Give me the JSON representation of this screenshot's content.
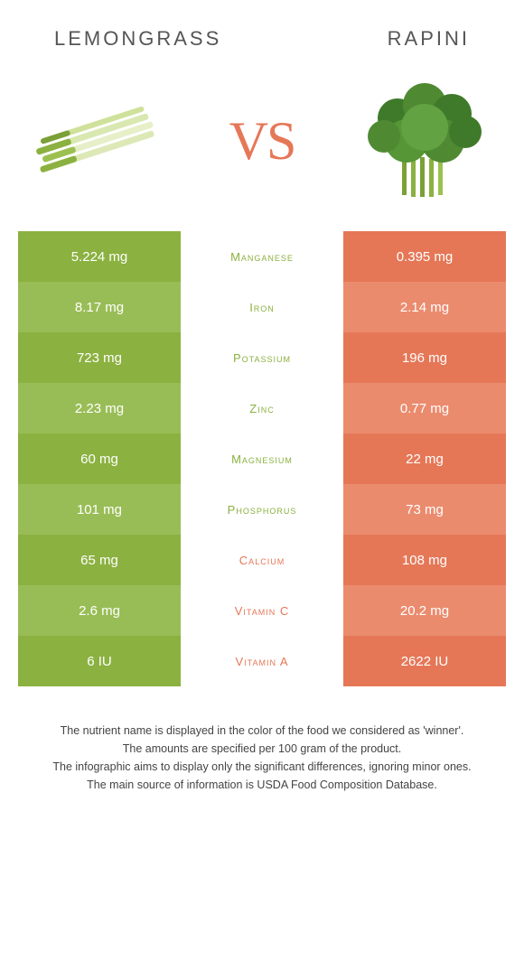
{
  "foods": {
    "left": {
      "name": "LEMONGRASS",
      "color": "#8bb140",
      "alt_color": "#99bd56"
    },
    "right": {
      "name": "RAPINI",
      "color": "#e57757",
      "alt_color": "#eb8b6e"
    }
  },
  "vs_label": "VS",
  "nutrients": [
    {
      "name": "Manganese",
      "left": "5.224 mg",
      "right": "0.395 mg",
      "winner": "left"
    },
    {
      "name": "Iron",
      "left": "8.17 mg",
      "right": "2.14 mg",
      "winner": "left"
    },
    {
      "name": "Potassium",
      "left": "723 mg",
      "right": "196 mg",
      "winner": "left"
    },
    {
      "name": "Zinc",
      "left": "2.23 mg",
      "right": "0.77 mg",
      "winner": "left"
    },
    {
      "name": "Magnesium",
      "left": "60 mg",
      "right": "22 mg",
      "winner": "left"
    },
    {
      "name": "Phosphorus",
      "left": "101 mg",
      "right": "73 mg",
      "winner": "left"
    },
    {
      "name": "Calcium",
      "left": "65 mg",
      "right": "108 mg",
      "winner": "right"
    },
    {
      "name": "Vitamin C",
      "left": "2.6 mg",
      "right": "20.2 mg",
      "winner": "right"
    },
    {
      "name": "Vitamin A",
      "left": "6 IU",
      "right": "2622 IU",
      "winner": "right"
    }
  ],
  "footer_lines": [
    "The nutrient name is displayed in the color of the food we considered as 'winner'.",
    "The amounts are specified per 100 gram of the product.",
    "The infographic aims to display only the significant differences, ignoring minor ones.",
    "The main source of information is USDA Food Composition Database."
  ]
}
